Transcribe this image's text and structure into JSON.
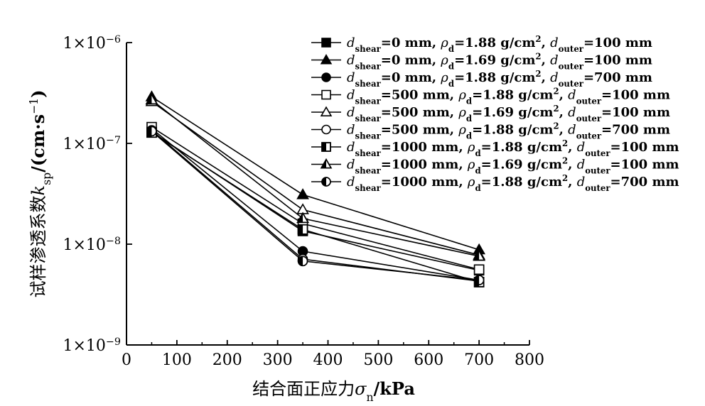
{
  "chart_data": {
    "type": "line",
    "xlabel": "结合面正应力σn/kPa",
    "ylabel": "试样渗透系数ksp/(cm·s−1)",
    "x_scale": "linear",
    "y_scale": "log",
    "xlim": [
      0,
      800
    ],
    "ylim": [
      1e-09,
      1e-06
    ],
    "x_ticks": [
      "0",
      "100",
      "200",
      "300",
      "400",
      "500",
      "600",
      "700",
      "800"
    ],
    "y_ticks": [
      "1×10−9",
      "1×10−8",
      "1×10−7",
      "1×10−6"
    ],
    "x": [
      50,
      350,
      700
    ],
    "series": [
      {
        "name": "dshear=0 mm, ρd=1.88 g/cm2, douter=100 mm",
        "marker": "square-filled",
        "values": [
          1.3e-07,
          1.35e-08,
          5.5e-09
        ]
      },
      {
        "name": "dshear=0 mm, ρd=1.69 g/cm2, douter=100 mm",
        "marker": "triangle-filled",
        "values": [
          2.9e-07,
          3.1e-08,
          8.8e-09
        ]
      },
      {
        "name": "dshear=0 mm, ρd=1.88 g/cm2, douter=700 mm",
        "marker": "circle-filled",
        "values": [
          1.4e-07,
          8.5e-09,
          4.4e-09
        ]
      },
      {
        "name": "dshear=500 mm, ρd=1.88 g/cm2, douter=100 mm",
        "marker": "square-open",
        "values": [
          1.45e-07,
          1.6e-08,
          5.6e-09
        ]
      },
      {
        "name": "dshear=500 mm, ρd=1.69 g/cm2, douter=100 mm",
        "marker": "triangle-open",
        "values": [
          2.6e-07,
          2.2e-08,
          7.8e-09
        ]
      },
      {
        "name": "dshear=500 mm, ρd=1.88 g/cm2, douter=700 mm",
        "marker": "circle-open",
        "values": [
          1.35e-07,
          7.1e-09,
          4.3e-09
        ]
      },
      {
        "name": "dshear=1000 mm, ρd=1.88 g/cm2, douter=100 mm",
        "marker": "square-half",
        "values": [
          1.28e-07,
          1.4e-08,
          4.2e-09
        ]
      },
      {
        "name": "dshear=1000 mm, ρd=1.69 g/cm2, douter=100 mm",
        "marker": "triangle-half",
        "values": [
          2.7e-07,
          1.8e-08,
          7.6e-09
        ]
      },
      {
        "name": "dshear=1000 mm, ρd=1.88 g/cm2, douter=700 mm",
        "marker": "circle-half",
        "values": [
          1.32e-07,
          6.8e-09,
          4.4e-09
        ]
      }
    ],
    "legend": {
      "placement": "top-right",
      "entries": [
        {
          "d1": "=0 mm, ",
          "rho": "=1.88 g/cm",
          "d2": "=100 mm"
        },
        {
          "d1": "=0 mm, ",
          "rho": "=1.69 g/cm",
          "d2": "=100 mm"
        },
        {
          "d1": "=0 mm, ",
          "rho": "=1.88 g/cm",
          "d2": "=700 mm"
        },
        {
          "d1": "=500 mm, ",
          "rho": "=1.88 g/cm",
          "d2": "=100 mm"
        },
        {
          "d1": "=500 mm, ",
          "rho": "=1.69 g/cm",
          "d2": "=100 mm"
        },
        {
          "d1": "=500 mm, ",
          "rho": "=1.88 g/cm",
          "d2": "=700 mm"
        },
        {
          "d1": "=1000 mm, ",
          "rho": "=1.88 g/cm",
          "d2": "=100 mm"
        },
        {
          "d1": "=1000 mm, ",
          "rho": "=1.69 g/cm",
          "d2": "=100 mm"
        },
        {
          "d1": "=1000 mm, ",
          "rho": "=1.88 g/cm",
          "d2": "=700 mm"
        }
      ]
    },
    "grid": false
  }
}
